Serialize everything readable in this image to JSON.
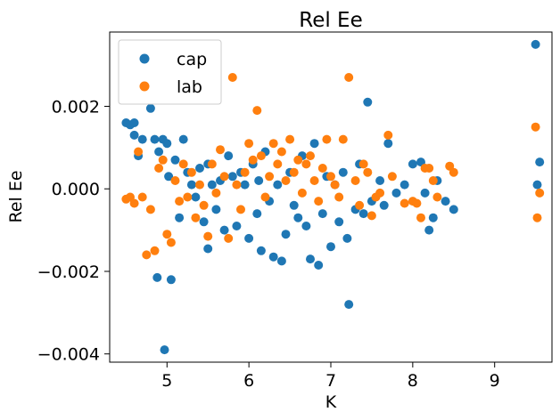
{
  "chart_data": {
    "type": "scatter",
    "title": "Rel Ee",
    "xlabel": "K",
    "ylabel": "Rel Ee",
    "xlim": [
      4.3,
      9.7
    ],
    "ylim": [
      -0.0042,
      0.0038
    ],
    "x_ticks": [
      5,
      6,
      7,
      8,
      9
    ],
    "y_ticks": [
      -0.004,
      -0.002,
      0.0,
      0.002
    ],
    "x_tick_labels": [
      "5",
      "6",
      "7",
      "8",
      "9"
    ],
    "y_tick_labels": [
      "−0.004",
      "−0.002",
      "0.000",
      "0.002"
    ],
    "grid": false,
    "legend_position": "upper-left",
    "series": [
      {
        "name": "cap",
        "color": "#1f77b4",
        "points": [
          [
            4.5,
            0.0016
          ],
          [
            4.55,
            0.00155
          ],
          [
            4.6,
            0.0016
          ],
          [
            4.6,
            0.0013
          ],
          [
            4.65,
            0.0008
          ],
          [
            4.7,
            0.0012
          ],
          [
            4.8,
            0.00195
          ],
          [
            4.85,
            0.0012
          ],
          [
            4.88,
            -0.00215
          ],
          [
            4.9,
            0.0009
          ],
          [
            4.95,
            0.0012
          ],
          [
            4.97,
            -0.0039
          ],
          [
            5.0,
            0.0011
          ],
          [
            5.02,
            0.0003
          ],
          [
            5.05,
            -0.0022
          ],
          [
            5.1,
            0.0007
          ],
          [
            5.15,
            -0.0007
          ],
          [
            5.2,
            0.0012
          ],
          [
            5.25,
            0.0004
          ],
          [
            5.3,
            0.0001
          ],
          [
            5.35,
            -0.0002
          ],
          [
            5.4,
            0.0005
          ],
          [
            5.45,
            -0.0008
          ],
          [
            5.5,
            -0.00145
          ],
          [
            5.5,
            0.0006
          ],
          [
            5.55,
            0.0001
          ],
          [
            5.6,
            -0.0005
          ],
          [
            5.65,
            0.0002
          ],
          [
            5.7,
            -0.001
          ],
          [
            5.75,
            0.0008
          ],
          [
            5.8,
            0.0003
          ],
          [
            5.85,
            -0.0009
          ],
          [
            5.9,
            0.0004
          ],
          [
            5.95,
            0.0001
          ],
          [
            6.0,
            -0.0012
          ],
          [
            6.05,
            0.0006
          ],
          [
            6.1,
            -0.0006
          ],
          [
            6.12,
            0.0002
          ],
          [
            6.15,
            -0.0015
          ],
          [
            6.2,
            0.0009
          ],
          [
            6.25,
            -0.0003
          ],
          [
            6.3,
            -0.00165
          ],
          [
            6.35,
            0.0001
          ],
          [
            6.4,
            -0.00175
          ],
          [
            6.45,
            -0.0011
          ],
          [
            6.5,
            0.0004
          ],
          [
            6.55,
            -0.0004
          ],
          [
            6.6,
            -0.0007
          ],
          [
            6.65,
            0.0008
          ],
          [
            6.7,
            -0.0009
          ],
          [
            6.75,
            -0.0017
          ],
          [
            6.8,
            0.0011
          ],
          [
            6.85,
            -0.00185
          ],
          [
            6.9,
            -0.0006
          ],
          [
            6.95,
            0.0003
          ],
          [
            7.0,
            -0.0014
          ],
          [
            7.05,
            0.0001
          ],
          [
            7.1,
            -0.0008
          ],
          [
            7.15,
            0.0004
          ],
          [
            7.2,
            -0.0012
          ],
          [
            7.22,
            -0.0028
          ],
          [
            7.3,
            -0.0005
          ],
          [
            7.35,
            0.0006
          ],
          [
            7.4,
            -0.0006
          ],
          [
            7.45,
            0.0021
          ],
          [
            7.5,
            -0.0003
          ],
          [
            7.6,
            0.0002
          ],
          [
            7.65,
            -0.0004
          ],
          [
            7.7,
            0.0011
          ],
          [
            7.8,
            -0.0001
          ],
          [
            7.9,
            0.0001
          ],
          [
            8.0,
            0.0006
          ],
          [
            8.1,
            0.00065
          ],
          [
            8.15,
            -0.0001
          ],
          [
            8.2,
            -0.001
          ],
          [
            8.25,
            -0.0007
          ],
          [
            8.3,
            0.0002
          ],
          [
            8.4,
            -0.0003
          ],
          [
            8.5,
            -0.0005
          ],
          [
            9.5,
            0.0035
          ],
          [
            9.52,
            0.0001
          ],
          [
            9.55,
            0.00065
          ]
        ]
      },
      {
        "name": "lab",
        "color": "#ff7f0e",
        "points": [
          [
            4.5,
            -0.00025
          ],
          [
            4.55,
            -0.0002
          ],
          [
            4.6,
            -0.00035
          ],
          [
            4.65,
            0.0009
          ],
          [
            4.7,
            -0.0002
          ],
          [
            4.75,
            -0.0016
          ],
          [
            4.8,
            -0.0005
          ],
          [
            4.85,
            -0.0015
          ],
          [
            4.9,
            0.0005
          ],
          [
            4.95,
            0.0007
          ],
          [
            5.0,
            -0.0011
          ],
          [
            5.05,
            -0.0013
          ],
          [
            5.1,
            0.0002
          ],
          [
            5.15,
            -0.0003
          ],
          [
            5.2,
            0.0006
          ],
          [
            5.25,
            -0.0002
          ],
          [
            5.3,
            0.0004
          ],
          [
            5.35,
            -0.0007
          ],
          [
            5.4,
            0.0001
          ],
          [
            5.45,
            -0.0004
          ],
          [
            5.5,
            -0.00115
          ],
          [
            5.55,
            0.0006
          ],
          [
            5.6,
            -0.0001
          ],
          [
            5.65,
            0.00095
          ],
          [
            5.7,
            0.0003
          ],
          [
            5.75,
            -0.0012
          ],
          [
            5.8,
            0.0027
          ],
          [
            5.85,
            0.0001
          ],
          [
            5.9,
            -0.0005
          ],
          [
            5.95,
            0.0004
          ],
          [
            6.0,
            0.0011
          ],
          [
            6.05,
            0.0007
          ],
          [
            6.1,
            0.0019
          ],
          [
            6.15,
            0.0008
          ],
          [
            6.2,
            -0.0002
          ],
          [
            6.25,
            0.0003
          ],
          [
            6.3,
            0.0011
          ],
          [
            6.35,
            0.0006
          ],
          [
            6.4,
            0.0009
          ],
          [
            6.45,
            0.0002
          ],
          [
            6.5,
            0.0012
          ],
          [
            6.55,
            0.0004
          ],
          [
            6.6,
            0.0007
          ],
          [
            6.65,
            -0.0001
          ],
          [
            6.7,
            0.0006
          ],
          [
            6.75,
            0.0008
          ],
          [
            6.8,
            0.0002
          ],
          [
            6.85,
            -0.0003
          ],
          [
            6.9,
            0.0005
          ],
          [
            6.95,
            0.0012
          ],
          [
            7.0,
            0.0003
          ],
          [
            7.05,
            0.0001
          ],
          [
            7.1,
            -0.0002
          ],
          [
            7.15,
            0.0012
          ],
          [
            7.22,
            0.0027
          ],
          [
            7.3,
            0.0002
          ],
          [
            7.35,
            -0.0004
          ],
          [
            7.4,
            0.0006
          ],
          [
            7.45,
            0.0004
          ],
          [
            7.5,
            -0.00065
          ],
          [
            7.55,
            -0.0002
          ],
          [
            7.6,
            -0.0001
          ],
          [
            7.7,
            0.0013
          ],
          [
            7.75,
            0.0003
          ],
          [
            7.9,
            -0.00035
          ],
          [
            8.0,
            -0.0003
          ],
          [
            8.05,
            -0.00035
          ],
          [
            8.1,
            -0.0007
          ],
          [
            8.15,
            0.0005
          ],
          [
            8.2,
            0.0005
          ],
          [
            8.25,
            0.0002
          ],
          [
            8.3,
            -0.0002
          ],
          [
            8.45,
            0.00055
          ],
          [
            8.5,
            0.0004
          ],
          [
            9.5,
            0.0015
          ],
          [
            9.52,
            -0.0007
          ],
          [
            9.55,
            -0.0001
          ]
        ]
      }
    ]
  }
}
